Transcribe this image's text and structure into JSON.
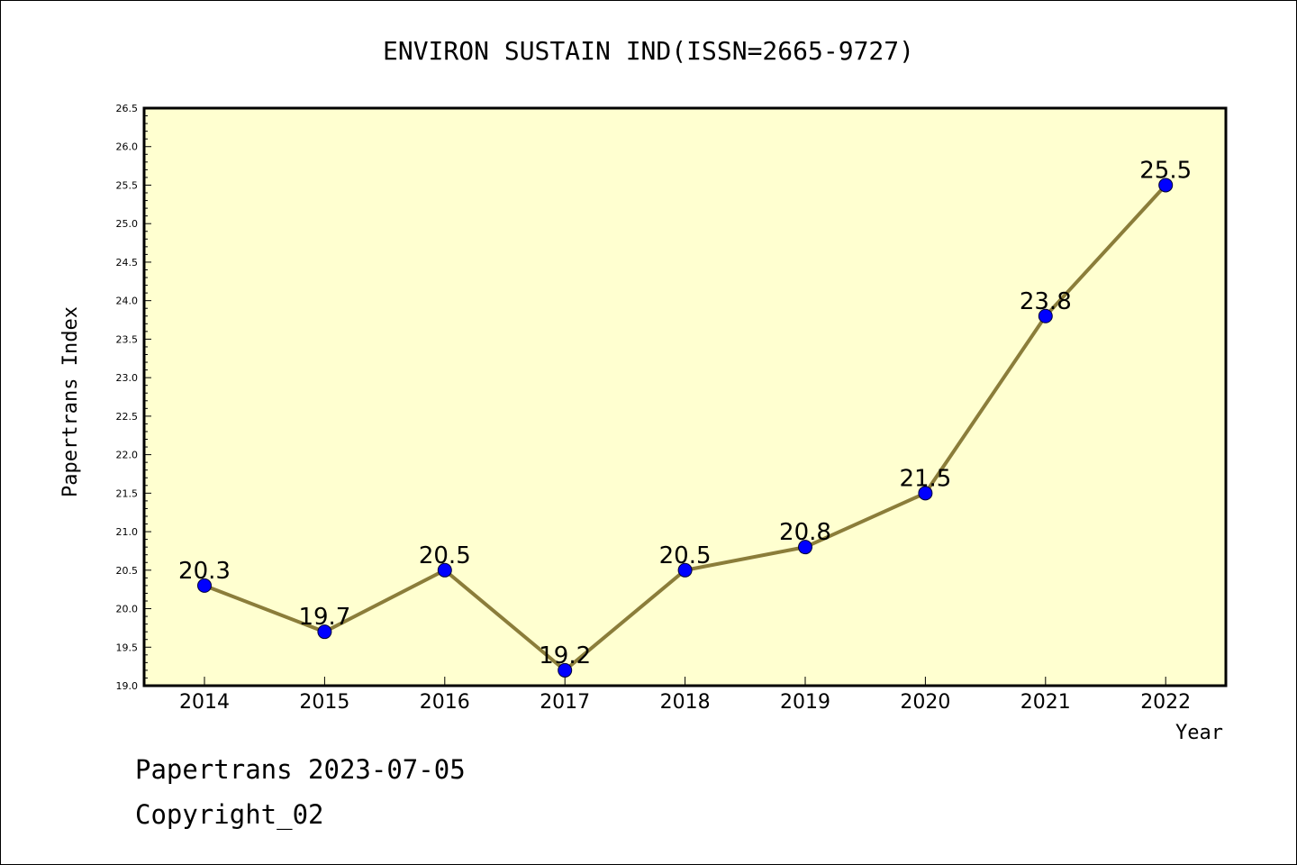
{
  "footer": {
    "line1": "Papertrans 2023-07-05",
    "line2": "Copyright_02"
  },
  "colors": {
    "plot_background": "#ffffd0",
    "line": "#8b7d3a",
    "marker": "#0000ff"
  },
  "chart_data": {
    "type": "line",
    "title": "ENVIRON SUSTAIN IND(ISSN=2665-9727)",
    "xlabel": "Year",
    "ylabel": "Papertrans Index",
    "categories": [
      "2014",
      "2015",
      "2016",
      "2017",
      "2018",
      "2019",
      "2020",
      "2021",
      "2022"
    ],
    "series": [
      {
        "values": [
          20.3,
          19.7,
          20.5,
          19.2,
          20.5,
          20.8,
          21.5,
          23.8,
          25.5
        ]
      }
    ],
    "data_labels": [
      "20.3",
      "19.7",
      "20.5",
      "19.2",
      "20.5",
      "20.8",
      "21.5",
      "23.8",
      "25.5"
    ],
    "ylim": [
      19.0,
      26.5
    ],
    "yticks": [
      "19.0",
      "19.5",
      "20.0",
      "20.5",
      "21.0",
      "21.5",
      "22.0",
      "22.5",
      "23.0",
      "23.5",
      "24.0",
      "24.5",
      "25.0",
      "25.5",
      "26.0",
      "26.5"
    ],
    "grid": false,
    "legend": "none"
  }
}
